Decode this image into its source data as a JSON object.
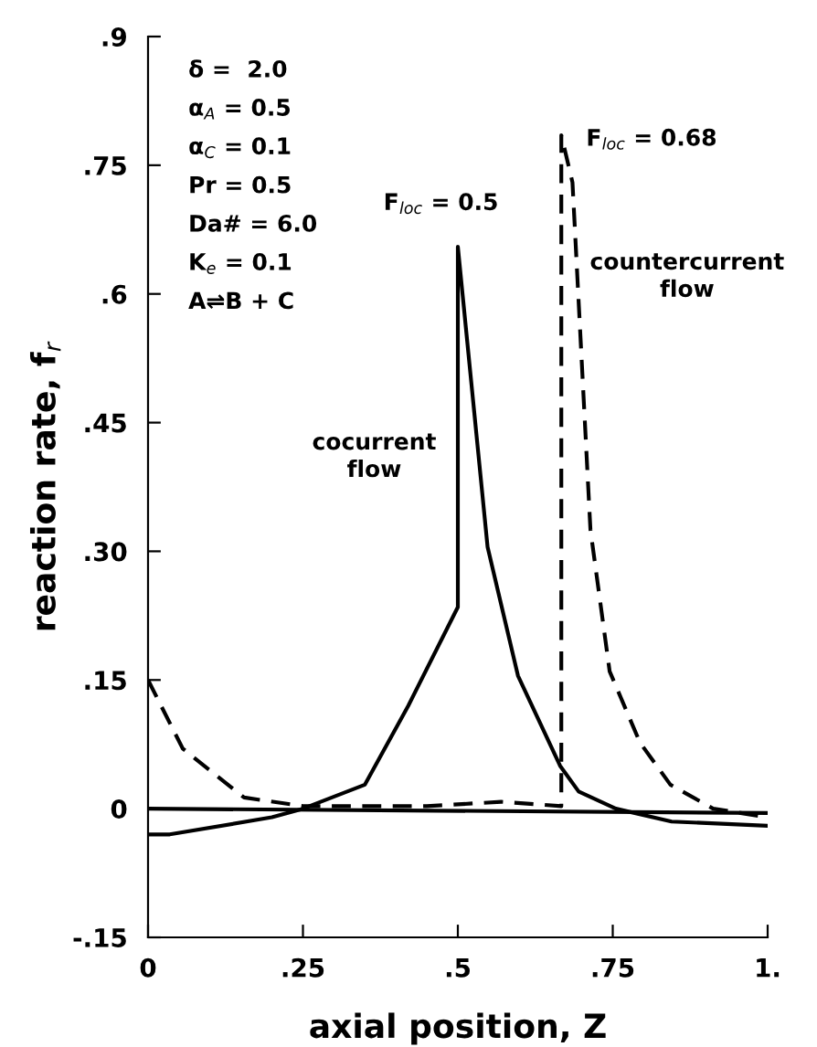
{
  "chart_data": {
    "type": "line",
    "xlabel": "axial position, Z",
    "ylabel": "reaction rate, f$_{r}$",
    "xlim": [
      0,
      1
    ],
    "ylim": [
      -0.15,
      0.9
    ],
    "xticks": [
      0,
      {
        "value": 0.25,
        "label": ".25"
      },
      {
        "value": 0.5,
        "label": ".5"
      },
      {
        "value": 0.75,
        "label": ".75"
      },
      {
        "value": 1,
        "label": "1."
      }
    ],
    "yticks": [
      {
        "value": -0.15,
        "label": "-.15"
      },
      0,
      {
        "value": 0.15,
        "label": ".15"
      },
      {
        "value": 0.3,
        "label": ".30"
      },
      {
        "value": 0.45,
        "label": ".45"
      },
      {
        "value": 0.6,
        "label": ".6"
      },
      {
        "value": 0.75,
        "label": ".75"
      },
      {
        "value": 0.9,
        "label": ".9"
      }
    ],
    "grid": false,
    "legend": false,
    "marker": "none",
    "series": [
      {
        "color": "#000000",
        "line_style": "solid",
        "x": [
          0,
          0.035,
          0.2,
          0.25,
          0.35,
          0.42,
          0.5,
          0.5,
          0.548,
          0.597,
          0.665,
          0.695,
          0.755,
          0.845,
          1.0
        ],
        "values": [
          -0.03,
          -0.03,
          -0.01,
          0,
          0.028,
          0.12,
          0.235,
          0.655,
          0.305,
          0.155,
          0.05,
          0.02,
          0,
          -0.015,
          -0.02
        ]
      },
      {
        "color": "#000000",
        "line_style": "dashed",
        "x": [
          0,
          0.056,
          0.155,
          0.25,
          0.45,
          0.57,
          0.667,
          0.667,
          0.685,
          0.714,
          0.745,
          0.794,
          0.843,
          0.912,
          1.0
        ],
        "values": [
          0.15,
          0.07,
          0.013,
          0.003,
          0.003,
          0.008,
          0.003,
          0.785,
          0.73,
          0.325,
          0.16,
          0.077,
          0.028,
          0,
          -0.01
        ]
      },
      {
        "color": "#000000",
        "line_style": "solid",
        "x": [
          0,
          1.0
        ],
        "values": [
          0,
          -0.005
        ]
      }
    ],
    "annotations": [
      "δ =  2.0",
      "α$_{A}$ = 0.5",
      "α$_{C}$ = 0.1",
      "Pr = 0.5",
      "Da# = 6.0",
      "K$_{e}$ = 0.1",
      "A⇌B + C",
      {
        "text": "F$_{loc}$ = 0.5",
        "x": 0.5,
        "y": 0.655
      },
      {
        "text": "F$_{loc}$ = 0.68",
        "x": 0.667,
        "y": 0.785
      },
      "cocurrent\nflow",
      "countercurrent\nflow"
    ]
  }
}
